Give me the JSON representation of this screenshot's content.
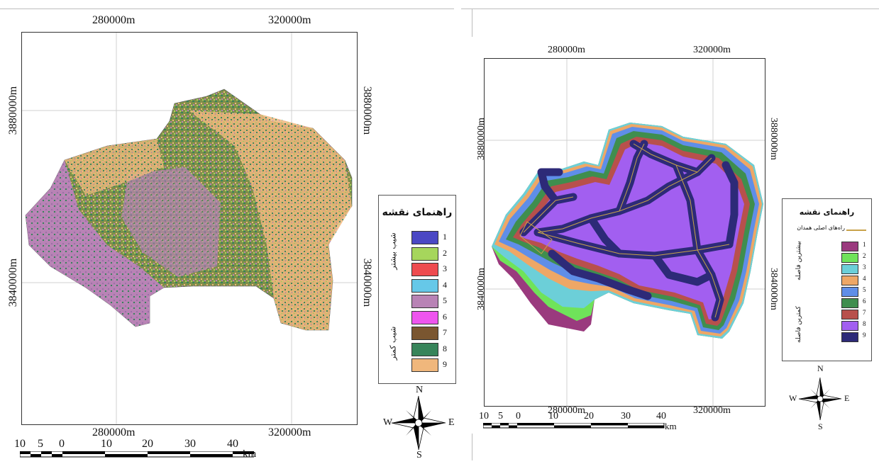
{
  "maps": [
    {
      "id": "left",
      "x_ticks": [
        "280000m",
        "320000m"
      ],
      "y_ticks": [
        "3880000m",
        "3840000m"
      ],
      "legend_title": "راهنمای نقشه",
      "legend_items": [
        {
          "label": "1",
          "color": "#4b48c4"
        },
        {
          "label": "2",
          "color": "#a6d65c"
        },
        {
          "label": "3",
          "color": "#ee4b4f"
        },
        {
          "label": "4",
          "color": "#66c8e8"
        },
        {
          "label": "5",
          "color": "#b883b5"
        },
        {
          "label": "6",
          "color": "#ee55ee"
        },
        {
          "label": "7",
          "color": "#7a5630"
        },
        {
          "label": "8",
          "color": "#37845a"
        },
        {
          "label": "9",
          "color": "#f0b77c"
        }
      ],
      "legend_side_top": "شیب بیشتر",
      "legend_side_bottom": "شیب کمتر",
      "scale_labels": [
        "10",
        "5",
        "0",
        "10",
        "20",
        "30",
        "40"
      ],
      "scale_unit": "km",
      "compass": {
        "n": "N",
        "s": "S",
        "e": "E",
        "w": "W"
      }
    },
    {
      "id": "right",
      "x_ticks": [
        "280000m",
        "320000m"
      ],
      "y_ticks": [
        "3880000m",
        "3840000m"
      ],
      "legend_title": "راهنمای نقشه",
      "road_label": "راه‌های اصلی همدان",
      "legend_items": [
        {
          "label": "1",
          "color": "#9a3a7e"
        },
        {
          "label": "2",
          "color": "#6fe35a"
        },
        {
          "label": "3",
          "color": "#6ccfd8"
        },
        {
          "label": "4",
          "color": "#eea766"
        },
        {
          "label": "5",
          "color": "#5f8ee8"
        },
        {
          "label": "6",
          "color": "#3f8e4e"
        },
        {
          "label": "7",
          "color": "#b8504c"
        },
        {
          "label": "8",
          "color": "#a25ff0"
        },
        {
          "label": "9",
          "color": "#2d2a78"
        }
      ],
      "legend_side_top": "بیشترین فاصله",
      "legend_side_bottom": "کمترین فاصله",
      "scale_labels": [
        "10",
        "5",
        "0",
        "10",
        "20",
        "30",
        "40"
      ],
      "scale_unit": "km",
      "compass": {
        "n": "N",
        "s": "S",
        "e": "E",
        "w": "W"
      }
    }
  ]
}
